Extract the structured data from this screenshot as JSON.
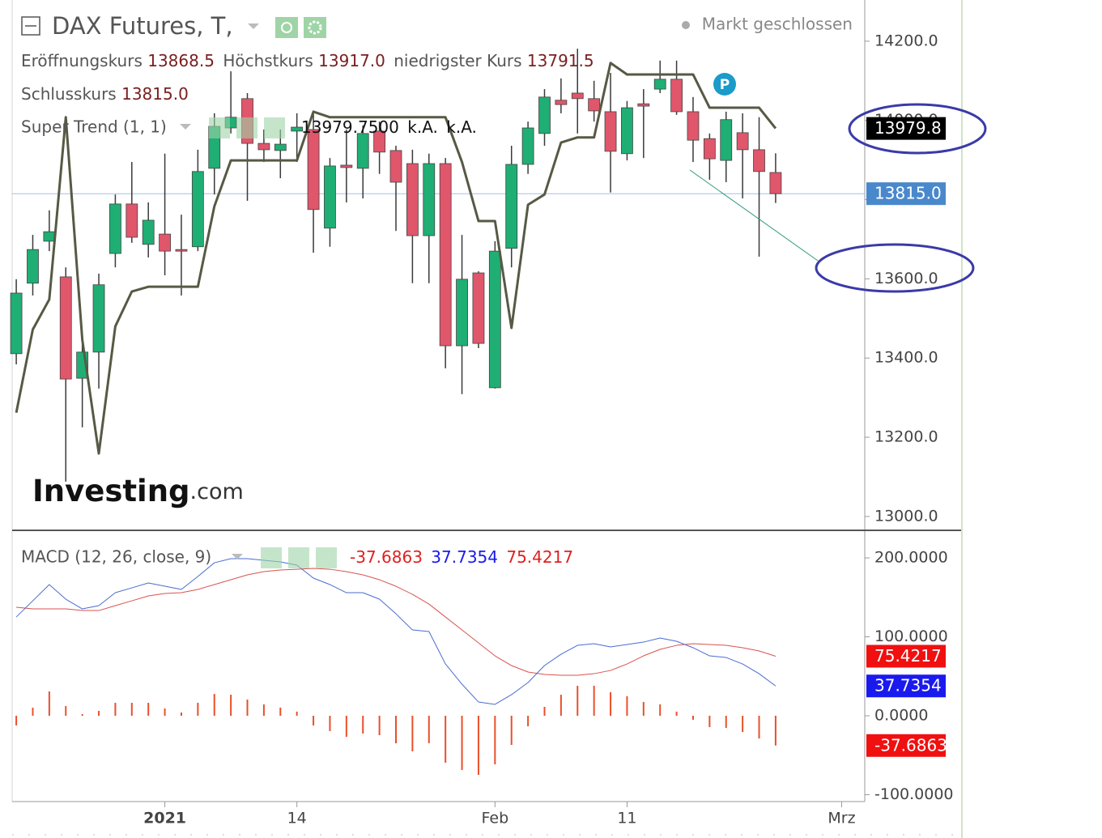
{
  "chart_data": [
    {
      "type": "candlestick",
      "title": "DAX Futures, T,",
      "status": "Markt geschlossen",
      "ohlc_legend": [
        {
          "label": "Eröffnungskurs",
          "value": "13868.5"
        },
        {
          "label": "Höchstkurs",
          "value": "13917.0"
        },
        {
          "label": "niedrigster Kurs",
          "value": "13791.5"
        },
        {
          "label": "Schlusskurs",
          "value": "13815.0"
        }
      ],
      "logo_main": "Investing",
      "logo_suffix": ".com",
      "badge": "P",
      "xlim": [
        -0.25,
        51.4
      ],
      "xticks": [
        {
          "value": 9,
          "label": "2021"
        },
        {
          "value": 17,
          "label": "14"
        },
        {
          "value": 29,
          "label": "Feb"
        },
        {
          "value": 37,
          "label": "11"
        },
        {
          "value": 50,
          "label": "Mrz"
        }
      ],
      "ylim": [
        12965,
        14304
      ],
      "yticks": [
        {
          "value": 13000,
          "label": "13000.0"
        },
        {
          "value": 13200,
          "label": "13200.0"
        },
        {
          "value": 13400,
          "label": "13400.0"
        },
        {
          "value": 13600,
          "label": "13600.0"
        },
        {
          "value": 13800,
          "label": "13800.0"
        },
        {
          "value": 14000,
          "label": "14000.0"
        },
        {
          "value": 14200,
          "label": "14200.0"
        }
      ],
      "up_color": "#1fae74",
      "down_color": "#e0566b",
      "wick_color": "#3a3a3a",
      "open": [
        13411,
        13589,
        13695,
        13605,
        13349,
        13415,
        13664,
        13789,
        13687,
        13713,
        13674,
        13681,
        13879,
        13981,
        14055,
        13942,
        13924,
        13973,
        13977,
        13728,
        13887,
        13879,
        13973,
        13924,
        13891,
        13709,
        13891,
        13431,
        13615,
        13325,
        13677,
        13889,
        13967,
        14051,
        14069,
        14055,
        14022,
        13916,
        14042,
        14079,
        14104,
        14022,
        13954,
        13899,
        13969,
        13926,
        13868.5
      ],
      "high": [
        13599,
        13711,
        13773,
        13629,
        13435,
        13613,
        13813,
        13895,
        13793,
        13916,
        13762,
        13926,
        14018,
        14124,
        14069,
        13977,
        13977,
        14018,
        14018,
        13905,
        13977,
        13987,
        13997,
        13936,
        13926,
        13916,
        13905,
        13711,
        13619,
        13695,
        13936,
        13997,
        14079,
        14106,
        14181,
        14100,
        14120,
        14049,
        14079,
        14151,
        14151,
        14059,
        13967,
        14022,
        14018,
        14008,
        13917
      ],
      "low": [
        13384,
        13558,
        13670,
        13088,
        13225,
        13323,
        13629,
        13691,
        13654,
        13609,
        13558,
        13670,
        13813,
        13967,
        13797,
        13895,
        13854,
        13895,
        13666,
        13681,
        13793,
        13803,
        13865,
        13721,
        13589,
        13589,
        13374,
        13309,
        13425,
        13323,
        13629,
        13865,
        13936,
        14018,
        13967,
        13997,
        13818,
        13899,
        13905,
        14069,
        14014,
        13895,
        13850,
        13844,
        13803,
        13656,
        13791.5
      ],
      "close": [
        13564,
        13674,
        13719,
        13347,
        13415,
        13585,
        13789,
        13705,
        13748,
        13670,
        13670,
        13871,
        13985,
        14008,
        13942,
        13926,
        13940,
        13983,
        13775,
        13885,
        13881,
        13967,
        13920,
        13844,
        13709,
        13891,
        13431,
        13599,
        13437,
        13670,
        13889,
        13981,
        14059,
        14040,
        14055,
        14024,
        13922,
        14032,
        14036,
        14104,
        14022,
        13950,
        13903,
        14002,
        13926,
        13871,
        13815
      ],
      "close_line_color": "#9ec1ea",
      "close_tag_color": "#4a88cc",
      "close_last_label": "13815.0",
      "overlay": {
        "name": "Super Trend (1, 1)",
        "color": "#565a44",
        "legend_values": [
          "13979.7500",
          "k.A.",
          "k.A."
        ],
        "last_label": "13979.8",
        "tag_color": "#000000",
        "values": [
          13262,
          13472,
          13548,
          14008,
          13446,
          13159,
          13480,
          13568,
          13580,
          13580,
          13580,
          13580,
          13783,
          13899,
          13899,
          13899,
          13899,
          13899,
          14022,
          14008,
          14008,
          14008,
          14008,
          14008,
          14008,
          14008,
          14008,
          13895,
          13746,
          13746,
          13476,
          13787,
          13813,
          13944,
          13957,
          13957,
          14145,
          14116,
          14116,
          14116,
          14116,
          14116,
          14032,
          14032,
          14032,
          14032,
          13979.75
        ]
      }
    },
    {
      "type": "macd",
      "name": "MACD (12, 26, close, 9)",
      "xlim": [
        -0.25,
        51.4
      ],
      "ylim": [
        -108.7,
        234.9
      ],
      "yticks": [
        {
          "value": -100,
          "label": "-100.0000"
        },
        {
          "value": 0,
          "label": "0.0000"
        },
        {
          "value": 100,
          "label": "100.0000"
        },
        {
          "value": 200,
          "label": "200.0000"
        }
      ],
      "histogram": {
        "color": "#e8502a",
        "tag_color": "#f01010",
        "last_label": "-37.6863",
        "values": [
          -12.3,
          10.2,
          30.8,
          12.3,
          2.1,
          6.2,
          16.4,
          16.4,
          16.4,
          9.2,
          4.1,
          16.4,
          27.6,
          26.7,
          20.5,
          14.3,
          10.3,
          5.2,
          -12.3,
          -19.4,
          -26.7,
          -22.6,
          -24.6,
          -34.9,
          -45.1,
          -34.8,
          -59.5,
          -68.7,
          -74.9,
          -61.5,
          -36.9,
          -13.3,
          11.3,
          26.6,
          37.9,
          38.0,
          29.8,
          24.7,
          17.4,
          14.4,
          5.2,
          -5.1,
          -14.4,
          -15.4,
          -20.6,
          -28.8,
          -37.6863
        ]
      },
      "macd": {
        "color": "#4a6cd0",
        "tag_color": "#1a1aee",
        "last_label": "37.7354",
        "values": [
          125.1,
          145.6,
          166.2,
          147.7,
          135.4,
          139.5,
          155.9,
          162.0,
          168.2,
          164.1,
          160.0,
          176.4,
          193.8,
          199.0,
          199.0,
          196.9,
          194.9,
          190.8,
          174.4,
          166.2,
          155.9,
          155.9,
          147.7,
          129.2,
          108.7,
          106.7,
          65.6,
          40.0,
          17.4,
          14.4,
          26.7,
          42.1,
          63.6,
          77.9,
          89.2,
          91.3,
          87.2,
          90.3,
          93.3,
          98.5,
          94.4,
          86.2,
          75.9,
          73.8,
          65.6,
          53.3,
          37.7354
        ]
      },
      "signal": {
        "color": "#d9534f",
        "tag_color": "#f01010",
        "last_label": "75.4217",
        "values": [
          137.4,
          135.4,
          135.4,
          135.4,
          133.3,
          133.3,
          139.5,
          145.6,
          151.8,
          154.9,
          155.9,
          160.0,
          166.2,
          172.3,
          178.5,
          182.6,
          184.6,
          185.6,
          186.7,
          185.6,
          182.6,
          178.5,
          172.3,
          164.1,
          153.8,
          141.5,
          125.1,
          108.7,
          92.3,
          75.9,
          63.6,
          55.4,
          52.3,
          51.3,
          51.3,
          53.3,
          57.4,
          65.6,
          75.9,
          84.1,
          89.2,
          91.3,
          90.3,
          89.2,
          86.2,
          82.1,
          75.4217
        ]
      }
    }
  ]
}
